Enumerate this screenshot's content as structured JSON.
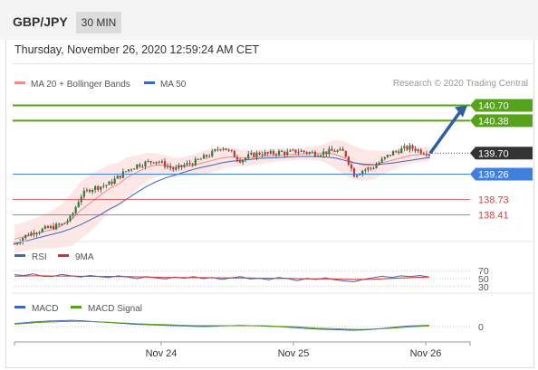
{
  "header": {
    "pair": "GBP/JPY",
    "timeframe": "30 MIN",
    "datetime": "Thursday, November 26, 2020 12:59:24 AM CET"
  },
  "colors": {
    "candle_up": "#2e7d32",
    "candle_down": "#d32f2f",
    "bollinger": "#f28c8c",
    "ma50": "#3f67b5",
    "green_level": "#55a318",
    "blue_level": "#3f7fe0",
    "red_level": "#e03c3c",
    "arrow": "#2f5f9e",
    "last_price_tag": "#333333",
    "rsi": "#3f67b5",
    "rsi_ma": "#d32f2f",
    "macd": "#3f67b5",
    "macd_signal": "#55a318"
  },
  "chart_data": [
    {
      "type": "candlestick",
      "legend": [
        {
          "label": "MA 20 + Bollinger Bands",
          "color": "#f28c8c"
        },
        {
          "label": "MA 50",
          "color": "#3f67b5"
        }
      ],
      "credit": "Research © 2020 Trading Central",
      "ylim": [
        138.0,
        140.9
      ],
      "levels": [
        {
          "value": 140.7,
          "label": "140.70",
          "color": "#55a318",
          "style": "tag"
        },
        {
          "value": 140.38,
          "label": "140.38",
          "color": "#55a318",
          "style": "tag"
        },
        {
          "value": 139.7,
          "label": "139.70",
          "color": "#333333",
          "style": "last"
        },
        {
          "value": 139.26,
          "label": "139.26",
          "color": "#3f7fe0",
          "style": "tag"
        },
        {
          "value": 138.73,
          "label": "138.73",
          "color": "#e03c3c",
          "style": "text"
        },
        {
          "value": 138.41,
          "label": "138.41",
          "color": "#e03c3c",
          "style": "text"
        }
      ],
      "close_path": [
        137.8,
        137.95,
        138.05,
        138.1,
        138.15,
        138.2,
        138.35,
        138.8,
        138.95,
        139.0,
        139.05,
        139.2,
        139.35,
        139.45,
        139.5,
        139.55,
        139.45,
        139.35,
        139.45,
        139.5,
        139.6,
        139.7,
        139.85,
        139.7,
        139.55,
        139.65,
        139.7,
        139.68,
        139.72,
        139.7,
        139.75,
        139.72,
        139.7,
        139.72,
        139.75,
        139.72,
        139.25,
        139.35,
        139.4,
        139.55,
        139.7,
        139.78,
        139.82,
        139.75,
        139.7
      ],
      "ma20": [
        137.9,
        137.95,
        138.0,
        138.05,
        138.1,
        138.18,
        138.3,
        138.5,
        138.65,
        138.8,
        138.95,
        139.05,
        139.2,
        139.3,
        139.4,
        139.45,
        139.45,
        139.4,
        139.42,
        139.45,
        139.5,
        139.55,
        139.6,
        139.62,
        139.6,
        139.6,
        139.62,
        139.64,
        139.66,
        139.67,
        139.68,
        139.69,
        139.7,
        139.7,
        139.68,
        139.6,
        139.5,
        139.45,
        139.45,
        139.5,
        139.55,
        139.6,
        139.65,
        139.67,
        139.68
      ],
      "ma50": [
        137.8,
        137.85,
        137.9,
        137.95,
        138.0,
        138.05,
        138.12,
        138.2,
        138.3,
        138.4,
        138.52,
        138.62,
        138.75,
        138.88,
        139.0,
        139.1,
        139.18,
        139.24,
        139.3,
        139.36,
        139.41,
        139.45,
        139.5,
        139.53,
        139.55,
        139.57,
        139.59,
        139.6,
        139.61,
        139.62,
        139.63,
        139.63,
        139.63,
        139.62,
        139.6,
        139.55,
        139.5,
        139.47,
        139.46,
        139.47,
        139.49,
        139.52,
        139.55,
        139.58,
        139.61
      ],
      "band_width": [
        0.3,
        0.3,
        0.32,
        0.35,
        0.4,
        0.45,
        0.55,
        0.6,
        0.6,
        0.55,
        0.5,
        0.45,
        0.42,
        0.35,
        0.3,
        0.25,
        0.2,
        0.2,
        0.2,
        0.22,
        0.25,
        0.25,
        0.23,
        0.2,
        0.18,
        0.16,
        0.15,
        0.14,
        0.13,
        0.13,
        0.12,
        0.13,
        0.14,
        0.2,
        0.3,
        0.35,
        0.35,
        0.33,
        0.3,
        0.25,
        0.2,
        0.18,
        0.17,
        0.16,
        0.15
      ],
      "projection": {
        "from": 139.7,
        "to": 140.7
      }
    },
    {
      "type": "line",
      "legend": [
        {
          "label": "RSI",
          "color": "#3f67b5"
        },
        {
          "label": "9MA",
          "color": "#d32f2f"
        }
      ],
      "ylim": [
        25,
        75
      ],
      "yticks": [
        70,
        50,
        30
      ],
      "series": [
        {
          "name": "RSI",
          "values": [
            60,
            58,
            62,
            56,
            55,
            61,
            57,
            54,
            58,
            55,
            53,
            57,
            54,
            50,
            55,
            52,
            49,
            54,
            51,
            55,
            50,
            53,
            48,
            52,
            55,
            49,
            51,
            47,
            53,
            50,
            45,
            51,
            48,
            52,
            47,
            44,
            42,
            48,
            52,
            56,
            53,
            57,
            55,
            58,
            54
          ]
        },
        {
          "name": "9MA",
          "values": [
            56,
            56.5,
            57,
            57,
            56.5,
            56.5,
            56.5,
            56,
            56,
            55.5,
            55.5,
            55,
            55,
            54.5,
            54,
            53.5,
            53,
            53,
            52.5,
            52.5,
            52.5,
            52,
            52,
            51.5,
            51.5,
            51.5,
            51,
            51,
            50.5,
            50.5,
            50,
            49.5,
            49.5,
            49.5,
            49,
            48.5,
            48,
            48,
            48.5,
            49.5,
            50.5,
            51.5,
            52.5,
            53.5,
            54
          ]
        }
      ]
    },
    {
      "type": "line",
      "legend": [
        {
          "label": "MACD",
          "color": "#3f67b5"
        },
        {
          "label": "MACD Signal",
          "color": "#55a318"
        }
      ],
      "ylim": [
        -0.35,
        0.35
      ],
      "yticks": [
        0
      ],
      "series": [
        {
          "name": "MACD",
          "values": [
            0.1,
            0.12,
            0.15,
            0.17,
            0.18,
            0.19,
            0.2,
            0.19,
            0.17,
            0.15,
            0.13,
            0.11,
            0.09,
            0.07,
            0.06,
            0.05,
            0.04,
            0.03,
            0.02,
            0.01,
            0.0,
            0.01,
            0.02,
            0.03,
            0.04,
            0.03,
            0.02,
            0.01,
            0.0,
            -0.02,
            -0.04,
            -0.06,
            -0.08,
            -0.09,
            -0.1,
            -0.11,
            -0.12,
            -0.11,
            -0.09,
            -0.06,
            -0.03,
            0.0,
            0.02,
            0.03,
            0.04
          ]
        },
        {
          "name": "MACD Signal",
          "values": [
            0.08,
            0.1,
            0.12,
            0.14,
            0.15,
            0.16,
            0.17,
            0.17,
            0.16,
            0.15,
            0.14,
            0.12,
            0.11,
            0.09,
            0.08,
            0.07,
            0.06,
            0.05,
            0.04,
            0.03,
            0.03,
            0.03,
            0.03,
            0.03,
            0.03,
            0.03,
            0.03,
            0.02,
            0.01,
            0.0,
            -0.01,
            -0.03,
            -0.05,
            -0.06,
            -0.07,
            -0.08,
            -0.09,
            -0.09,
            -0.08,
            -0.07,
            -0.05,
            -0.03,
            -0.01,
            0.01,
            0.02
          ]
        }
      ]
    }
  ],
  "x_axis": {
    "labels": [
      "Nov 24",
      "Nov 25",
      "Nov 26"
    ]
  }
}
